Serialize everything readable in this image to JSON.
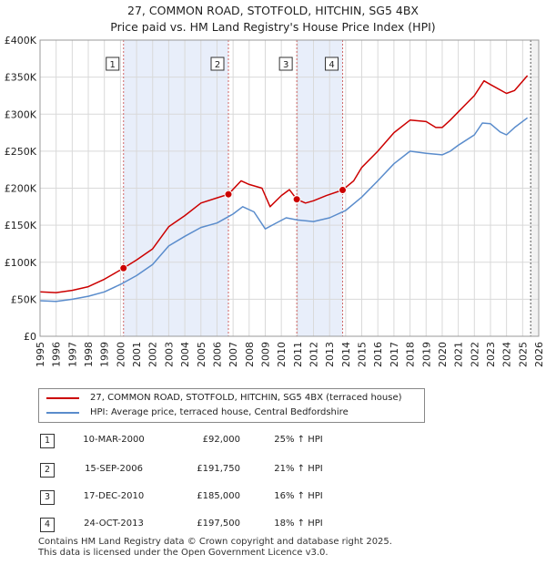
{
  "chart_data": {
    "type": "line",
    "title": "27, COMMON ROAD, STOTFOLD, HITCHIN, SG5 4BX",
    "subtitle": "Price paid vs. HM Land Registry's House Price Index (HPI)",
    "xlim": [
      1995,
      2026
    ],
    "ylim": [
      0,
      400000
    ],
    "x_ticks": [
      1995,
      1996,
      1997,
      1998,
      1999,
      2000,
      2001,
      2002,
      2003,
      2004,
      2005,
      2006,
      2007,
      2008,
      2009,
      2010,
      2011,
      2012,
      2013,
      2014,
      2015,
      2016,
      2017,
      2018,
      2019,
      2020,
      2021,
      2022,
      2023,
      2024,
      2025,
      2026
    ],
    "y_ticks": [
      {
        "value": 0,
        "label": "£0"
      },
      {
        "value": 50000,
        "label": "£50K"
      },
      {
        "value": 100000,
        "label": "£100K"
      },
      {
        "value": 150000,
        "label": "£150K"
      },
      {
        "value": 200000,
        "label": "£200K"
      },
      {
        "value": 250000,
        "label": "£250K"
      },
      {
        "value": 300000,
        "label": "£300K"
      },
      {
        "value": 350000,
        "label": "£350K"
      },
      {
        "value": 400000,
        "label": "£400K"
      }
    ],
    "shaded_ranges": [
      [
        2000.19,
        2006.71
      ],
      [
        2010.96,
        2013.81
      ]
    ],
    "data_end": 2025.5,
    "series": [
      {
        "name": "27, COMMON ROAD, STOTFOLD, HITCHIN, SG5 4BX (terraced house)",
        "color": "#cc0000",
        "points": [
          [
            1995.0,
            60000
          ],
          [
            1996.0,
            59000
          ],
          [
            1997.0,
            62000
          ],
          [
            1998.0,
            67000
          ],
          [
            1999.0,
            77000
          ],
          [
            2000.19,
            92000
          ],
          [
            2001.0,
            103000
          ],
          [
            2002.0,
            118000
          ],
          [
            2003.0,
            148000
          ],
          [
            2004.0,
            163000
          ],
          [
            2005.0,
            180000
          ],
          [
            2006.0,
            187000
          ],
          [
            2006.71,
            191750
          ],
          [
            2007.5,
            210000
          ],
          [
            2008.0,
            205000
          ],
          [
            2008.8,
            200000
          ],
          [
            2009.3,
            175000
          ],
          [
            2010.0,
            190000
          ],
          [
            2010.5,
            198000
          ],
          [
            2010.96,
            185000
          ],
          [
            2011.5,
            180000
          ],
          [
            2012.0,
            183000
          ],
          [
            2012.8,
            190000
          ],
          [
            2013.81,
            197500
          ],
          [
            2014.5,
            210000
          ],
          [
            2015.0,
            228000
          ],
          [
            2016.0,
            250000
          ],
          [
            2017.0,
            275000
          ],
          [
            2018.0,
            292000
          ],
          [
            2019.0,
            290000
          ],
          [
            2019.6,
            282000
          ],
          [
            2020.0,
            282000
          ],
          [
            2020.5,
            292000
          ],
          [
            2021.0,
            303000
          ],
          [
            2022.0,
            325000
          ],
          [
            2022.6,
            345000
          ],
          [
            2023.0,
            340000
          ],
          [
            2024.0,
            328000
          ],
          [
            2024.5,
            332000
          ],
          [
            2025.3,
            352000
          ]
        ]
      },
      {
        "name": "HPI: Average price, terraced house, Central Bedfordshire",
        "color": "#5a8ccc",
        "points": [
          [
            1995.0,
            48000
          ],
          [
            1996.0,
            47000
          ],
          [
            1997.0,
            50000
          ],
          [
            1998.0,
            54000
          ],
          [
            1999.0,
            60000
          ],
          [
            2000.0,
            70000
          ],
          [
            2001.0,
            82000
          ],
          [
            2002.0,
            97000
          ],
          [
            2003.0,
            122000
          ],
          [
            2004.0,
            135000
          ],
          [
            2005.0,
            147000
          ],
          [
            2006.0,
            153000
          ],
          [
            2007.0,
            165000
          ],
          [
            2007.6,
            175000
          ],
          [
            2008.3,
            168000
          ],
          [
            2009.0,
            145000
          ],
          [
            2009.6,
            152000
          ],
          [
            2010.3,
            160000
          ],
          [
            2011.0,
            157000
          ],
          [
            2012.0,
            155000
          ],
          [
            2013.0,
            160000
          ],
          [
            2014.0,
            170000
          ],
          [
            2015.0,
            188000
          ],
          [
            2016.0,
            210000
          ],
          [
            2017.0,
            233000
          ],
          [
            2018.0,
            250000
          ],
          [
            2019.0,
            247000
          ],
          [
            2020.0,
            245000
          ],
          [
            2020.5,
            250000
          ],
          [
            2021.0,
            258000
          ],
          [
            2022.0,
            272000
          ],
          [
            2022.5,
            288000
          ],
          [
            2023.0,
            287000
          ],
          [
            2023.6,
            276000
          ],
          [
            2024.0,
            272000
          ],
          [
            2024.5,
            282000
          ],
          [
            2025.3,
            295000
          ]
        ]
      }
    ],
    "markers": [
      {
        "label": "1",
        "x": 2000.19,
        "y": 92000
      },
      {
        "label": "2",
        "x": 2006.71,
        "y": 191750
      },
      {
        "label": "3",
        "x": 2010.96,
        "y": 185000
      },
      {
        "label": "4",
        "x": 2013.81,
        "y": 197500
      }
    ]
  },
  "legend": {
    "items": [
      {
        "label": "27, COMMON ROAD, STOTFOLD, HITCHIN, SG5 4BX (terraced house)",
        "color": "#cc0000"
      },
      {
        "label": "HPI: Average price, terraced house, Central Bedfordshire",
        "color": "#5a8ccc"
      }
    ]
  },
  "sales": [
    {
      "num": "1",
      "date": "10-MAR-2000",
      "price": "£92,000",
      "hpi": "25% ↑ HPI"
    },
    {
      "num": "2",
      "date": "15-SEP-2006",
      "price": "£191,750",
      "hpi": "21% ↑ HPI"
    },
    {
      "num": "3",
      "date": "17-DEC-2010",
      "price": "£185,000",
      "hpi": "16% ↑ HPI"
    },
    {
      "num": "4",
      "date": "24-OCT-2013",
      "price": "£197,500",
      "hpi": "18% ↑ HPI"
    }
  ],
  "footer": {
    "line1": "Contains HM Land Registry data © Crown copyright and database right 2025.",
    "line2": "This data is licensed under the Open Government Licence v3.0."
  }
}
